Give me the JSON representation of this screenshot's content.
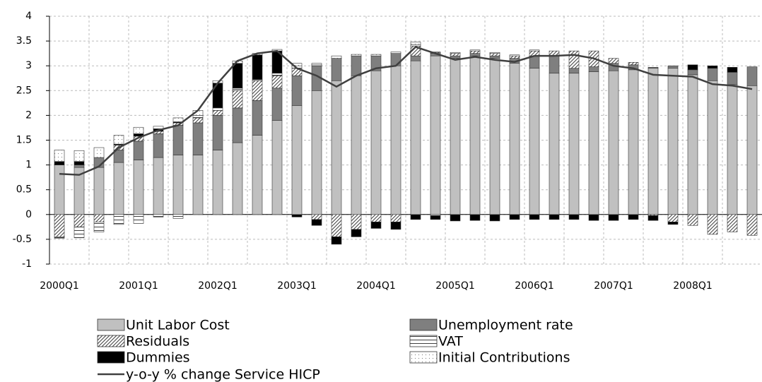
{
  "chart_data": {
    "type": "bar",
    "stacked": true,
    "categories": [
      "2000Q1",
      null,
      null,
      null,
      "2001Q1",
      null,
      null,
      null,
      "2002Q1",
      null,
      null,
      null,
      "2003Q1",
      null,
      null,
      null,
      "2004Q1",
      null,
      null,
      null,
      "2005Q1",
      null,
      null,
      null,
      "2006Q1",
      null,
      null,
      null,
      "2007Q1",
      null,
      null,
      null,
      "2008Q1",
      null,
      null,
      null
    ],
    "series": [
      {
        "name": "Unit Labor Cost",
        "color": "#c0c0c0",
        "values": [
          1.0,
          0.95,
          0.95,
          1.05,
          1.1,
          1.15,
          1.2,
          1.2,
          1.3,
          1.45,
          1.6,
          1.9,
          2.2,
          2.5,
          2.7,
          2.8,
          2.9,
          3.0,
          3.1,
          3.2,
          3.15,
          3.2,
          3.15,
          3.05,
          2.95,
          2.85,
          2.85,
          2.88,
          2.9,
          2.92,
          2.95,
          2.95,
          2.82,
          2.7,
          2.62,
          2.6
        ]
      },
      {
        "name": "Unemployment rate",
        "color": "#7f7f7f",
        "values": [
          0,
          0.05,
          0.2,
          0.25,
          0.38,
          0.48,
          0.6,
          0.65,
          0.7,
          0.7,
          0.7,
          0.65,
          0.6,
          0.5,
          0.45,
          0.4,
          0.3,
          0.25,
          0.1,
          0.05,
          0.05,
          0.05,
          0.05,
          0.1,
          0.25,
          0.35,
          0.1,
          0.1,
          0.15,
          0.1,
          0.02,
          0.05,
          0.1,
          0.25,
          0.25,
          0.38
        ]
      },
      {
        "name": "Residuals",
        "color": "#404040",
        "pattern": "diagonal",
        "values": [
          -0.45,
          -0.25,
          -0.15,
          0.1,
          0.1,
          0.05,
          0.05,
          0.1,
          0.1,
          0.35,
          0.4,
          0.25,
          0.15,
          -0.1,
          -0.45,
          -0.3,
          -0.15,
          -0.15,
          0.2,
          0.02,
          0.05,
          0.05,
          0.05,
          0.05,
          0.1,
          0.1,
          0.35,
          0.32,
          0.1,
          0.05,
          -0.02,
          -0.15,
          -0.22,
          -0.4,
          -0.35,
          -0.42
        ]
      },
      {
        "name": "VAT",
        "color": "#404040",
        "pattern": "horizontal",
        "values": [
          -0.03,
          -0.22,
          -0.2,
          -0.2,
          -0.18,
          -0.05,
          -0.08,
          0.05,
          0.05,
          0.05,
          0.02,
          0.05,
          0.05,
          0.02,
          0,
          0,
          0,
          0,
          0.03,
          -0.02,
          0,
          0,
          0,
          0,
          0,
          0,
          0,
          0,
          0,
          0,
          0,
          0,
          0,
          0,
          0,
          0
        ]
      },
      {
        "name": "Dummies",
        "color": "#000000",
        "values": [
          0.07,
          0.07,
          0,
          0.02,
          0.05,
          0.05,
          0.02,
          0,
          0.5,
          0.5,
          0.5,
          0.45,
          -0.05,
          -0.12,
          -0.15,
          -0.15,
          -0.13,
          -0.15,
          -0.1,
          -0.08,
          -0.13,
          -0.12,
          -0.13,
          -0.1,
          -0.1,
          -0.1,
          -0.1,
          -0.12,
          -0.12,
          -0.1,
          -0.1,
          -0.05,
          0.1,
          0.05,
          0.1,
          0
        ]
      },
      {
        "name": "Initial Contributions",
        "color": "#808080",
        "pattern": "dots",
        "values": [
          0.23,
          0.22,
          0.2,
          0.18,
          0.13,
          0.05,
          0.08,
          0.1,
          0.05,
          0.05,
          0.03,
          0.03,
          0.05,
          0.03,
          0.05,
          0.03,
          0.03,
          0.03,
          0.05,
          0.01,
          0.02,
          0.02,
          0.02,
          0.02,
          0.02,
          0,
          0,
          0,
          0,
          0,
          0,
          0,
          0,
          0,
          0,
          0
        ]
      },
      {
        "name": "y-o-y % change Service HICP",
        "type": "line",
        "color": "#404040",
        "values": [
          0.82,
          0.8,
          0.97,
          1.35,
          1.55,
          1.7,
          1.8,
          2.1,
          2.65,
          3.1,
          3.25,
          3.3,
          2.95,
          2.8,
          2.58,
          2.8,
          2.95,
          3.0,
          3.38,
          3.25,
          3.12,
          3.18,
          3.12,
          3.08,
          3.2,
          3.2,
          3.22,
          3.15,
          3.0,
          2.95,
          2.82,
          2.8,
          2.78,
          2.63,
          2.6,
          2.53
        ]
      }
    ],
    "ylim": [
      -1,
      4
    ],
    "yticks": [
      -1,
      -0.5,
      0,
      0.5,
      1,
      1.5,
      2,
      2.5,
      3,
      3.5,
      4
    ],
    "grid": true
  }
}
